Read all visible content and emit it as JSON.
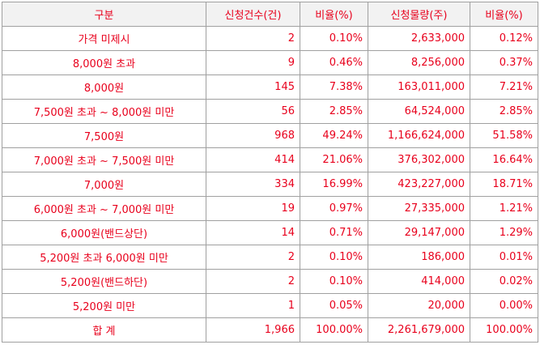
{
  "table": {
    "headers": [
      "구분",
      "신청건수(건)",
      "비율(%)",
      "신청물량(주)",
      "비율(%)"
    ],
    "rows": [
      {
        "category": "가격 미제시",
        "count": "2",
        "count_ratio": "0.10%",
        "volume": "2,633,000",
        "volume_ratio": "0.12%"
      },
      {
        "category": "8,000원 초과",
        "count": "9",
        "count_ratio": "0.46%",
        "volume": "8,256,000",
        "volume_ratio": "0.37%"
      },
      {
        "category": "8,000원",
        "count": "145",
        "count_ratio": "7.38%",
        "volume": "163,011,000",
        "volume_ratio": "7.21%"
      },
      {
        "category": "7,500원 초과 ~ 8,000원 미만",
        "count": "56",
        "count_ratio": "2.85%",
        "volume": "64,524,000",
        "volume_ratio": "2.85%"
      },
      {
        "category": "7,500원",
        "count": "968",
        "count_ratio": "49.24%",
        "volume": "1,166,624,000",
        "volume_ratio": "51.58%"
      },
      {
        "category": "7,000원 초과 ~ 7,500원 미만",
        "count": "414",
        "count_ratio": "21.06%",
        "volume": "376,302,000",
        "volume_ratio": "16.64%"
      },
      {
        "category": "7,000원",
        "count": "334",
        "count_ratio": "16.99%",
        "volume": "423,227,000",
        "volume_ratio": "18.71%"
      },
      {
        "category": "6,000원 초과 ~ 7,000원 미만",
        "count": "19",
        "count_ratio": "0.97%",
        "volume": "27,335,000",
        "volume_ratio": "1.21%"
      },
      {
        "category": "6,000원(밴드상단)",
        "count": "14",
        "count_ratio": "0.71%",
        "volume": "29,147,000",
        "volume_ratio": "1.29%"
      },
      {
        "category": "5,200원 초과 6,000원 미만",
        "count": "2",
        "count_ratio": "0.10%",
        "volume": "186,000",
        "volume_ratio": "0.01%"
      },
      {
        "category": "5,200원(밴드하단)",
        "count": "2",
        "count_ratio": "0.10%",
        "volume": "414,000",
        "volume_ratio": "0.02%"
      },
      {
        "category": "5,200원 미만",
        "count": "1",
        "count_ratio": "0.05%",
        "volume": "20,000",
        "volume_ratio": "0.00%"
      }
    ],
    "total": {
      "category": "합 계",
      "count": "1,966",
      "count_ratio": "100.00%",
      "volume": "2,261,679,000",
      "volume_ratio": "100.00%"
    }
  },
  "colors": {
    "text": "#e8001c",
    "header_bg": "#f2f2f2",
    "border": "#a0a0a0"
  }
}
